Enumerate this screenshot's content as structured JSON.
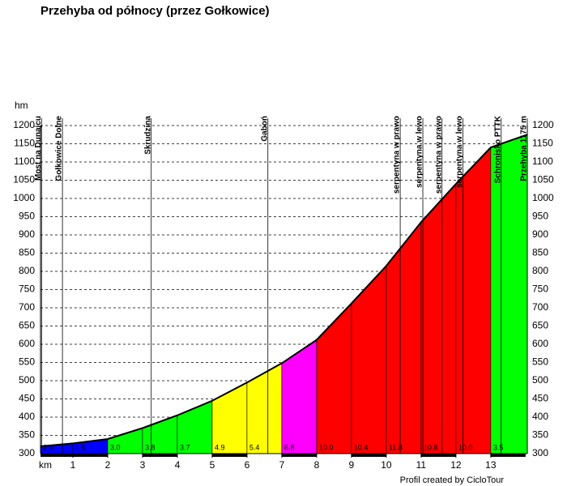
{
  "chart_data": {
    "type": "area",
    "title": "Przehyba od północy (przez Gołkowice)",
    "y_label": "hm",
    "x_label": "km",
    "credit": "Profil created by CicloTour",
    "x": [
      0,
      1,
      2,
      3,
      4,
      5,
      6,
      7,
      8,
      9,
      10,
      11,
      12,
      13,
      14.05
    ],
    "values": [
      320,
      328,
      340,
      370,
      405,
      445,
      495,
      548,
      612,
      712,
      815,
      935,
      1040,
      1140,
      1175
    ],
    "segments": {
      "values": [
        2.0,
        1.5,
        3.0,
        3.8,
        3.7,
        4.9,
        5.4,
        6.8,
        10.0,
        10.4,
        11.8,
        10.8,
        10.0,
        3.5
      ],
      "value_labels": [
        "2.0",
        "1.5",
        "3.0",
        "3.8",
        "3.7",
        "4.9",
        "5.4",
        "6.8",
        "10.0",
        "10.4",
        "11.8",
        "10.8",
        "10.0",
        "3.5"
      ],
      "colors": [
        "#0000ff",
        "#0000ff",
        "#00ff00",
        "#00ff00",
        "#00ff00",
        "#ffff00",
        "#ffff00",
        "#ff00ff",
        "#ff0000",
        "#ff0000",
        "#ff0000",
        "#ff0000",
        "#ff0000",
        "#00ff00"
      ]
    },
    "waypoints": [
      {
        "label": "Most na Dunajcu",
        "km": 0.1
      },
      {
        "label": "Gołkowice Dolne",
        "km": 0.7
      },
      {
        "label": "Skrudzina",
        "km": 3.25
      },
      {
        "label": "Gaboń",
        "km": 6.6
      },
      {
        "label": "serpentyna w prawo",
        "km": 10.4
      },
      {
        "label": "serpentyna w lewo",
        "km": 11.05
      },
      {
        "label": "serpentyna w prawo",
        "km": 11.6
      },
      {
        "label": "serpentyna w lewo",
        "km": 12.2
      },
      {
        "label": "Schronisko PTTK",
        "km": 13.3
      },
      {
        "label": "Przehyba 1175 m",
        "km": 14.05
      }
    ],
    "xlim": [
      0,
      14.05
    ],
    "ylim": [
      300,
      1200
    ],
    "xticks": [
      1,
      2,
      3,
      4,
      5,
      6,
      7,
      8,
      9,
      10,
      11,
      12,
      13
    ],
    "yticks": [
      300,
      350,
      400,
      450,
      500,
      550,
      600,
      650,
      700,
      750,
      800,
      850,
      900,
      950,
      1000,
      1050,
      1100,
      1150,
      1200
    ],
    "grid": true
  }
}
